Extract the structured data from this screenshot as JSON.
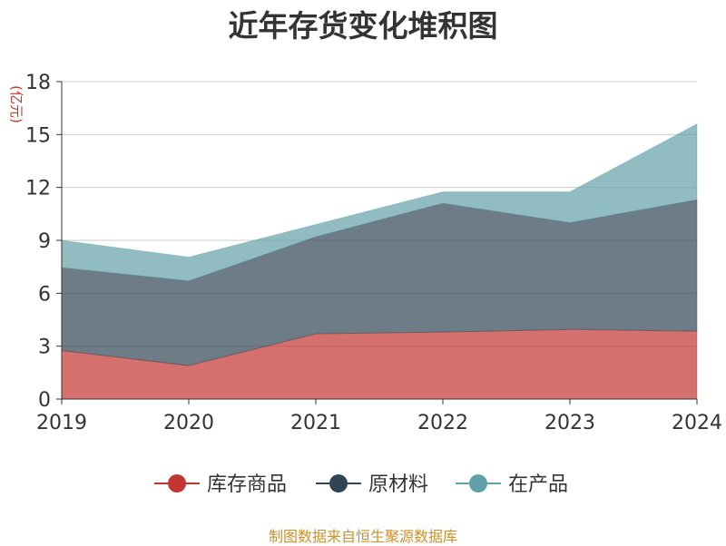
{
  "chart_data": {
    "type": "area",
    "stacked": true,
    "title": "近年存货变化堆积图",
    "unit_label": "(亿元)",
    "x": [
      "2019",
      "2020",
      "2021",
      "2022",
      "2023",
      "2024"
    ],
    "ylim": [
      0,
      18
    ],
    "yticks": [
      0,
      3,
      6,
      9,
      12,
      15,
      18
    ],
    "grid": true,
    "legend_position": "bottom",
    "series": [
      {
        "name": "库存商品",
        "color": "#c23531",
        "values": [
          2.75,
          1.9,
          3.7,
          3.8,
          3.95,
          3.85
        ]
      },
      {
        "name": "原材料",
        "color": "#2f4554",
        "values": [
          4.7,
          4.8,
          5.5,
          7.3,
          6.05,
          7.45
        ]
      },
      {
        "name": "在产品",
        "color": "#61a0a8",
        "values": [
          1.55,
          1.35,
          0.7,
          0.65,
          1.75,
          4.3
        ]
      }
    ]
  },
  "footer": {
    "source": "制图数据来自恒生聚源数据库"
  }
}
